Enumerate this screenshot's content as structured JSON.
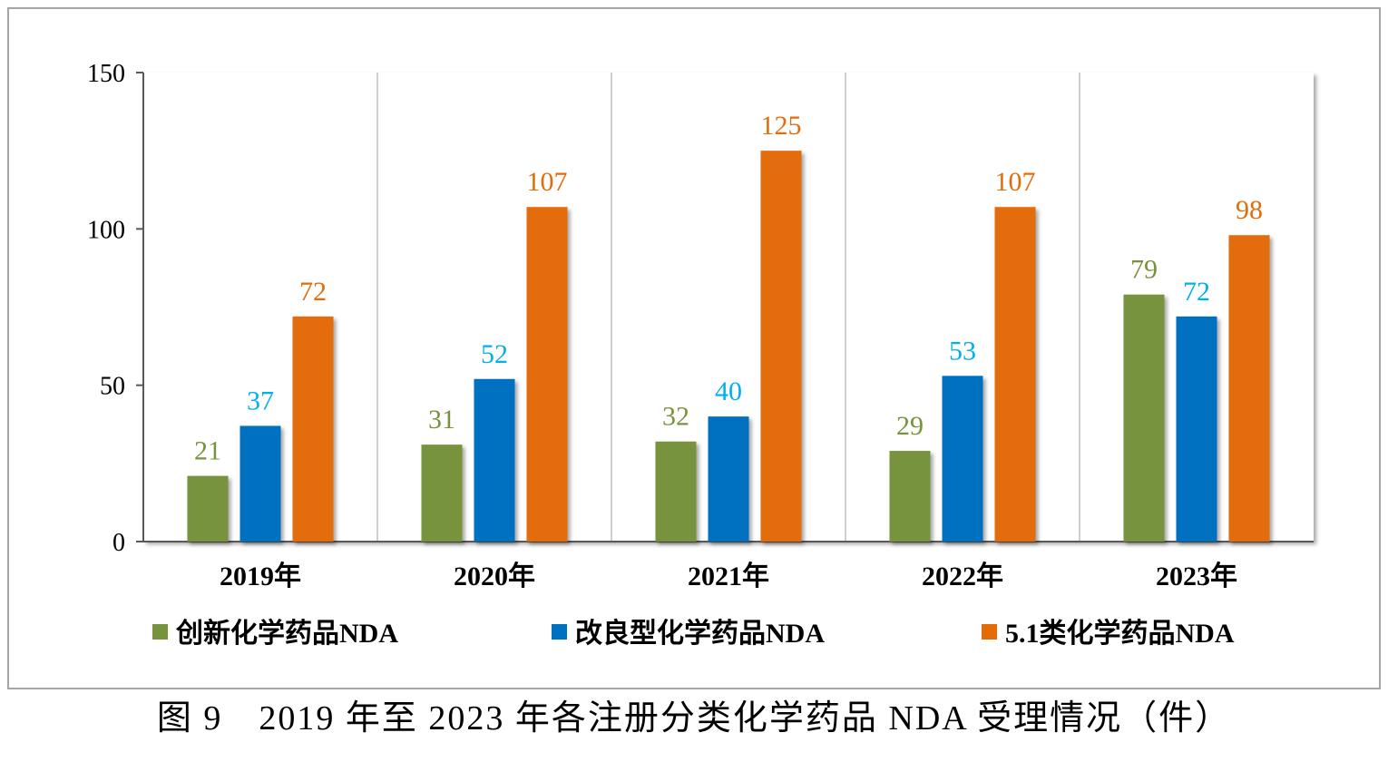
{
  "caption": "图 9　2019 年至 2023 年各注册分类化学药品 NDA 受理情况（件）",
  "chart_data": {
    "type": "bar",
    "title": "",
    "xlabel": "",
    "ylabel": "",
    "categories": [
      "2019年",
      "2020年",
      "2021年",
      "2022年",
      "2023年"
    ],
    "ylim": [
      0,
      150
    ],
    "yticks": [
      0,
      50,
      100,
      150
    ],
    "grid": "vertical separators between categories",
    "legend_position": "bottom",
    "series": [
      {
        "name": "创新化学药品NDA",
        "color": "#77933c",
        "label_color": "#77933c",
        "values": [
          21,
          31,
          32,
          29,
          79
        ]
      },
      {
        "name": "改良型化学药品NDA",
        "color": "#0070c0",
        "label_color": "#00b0f0",
        "values": [
          37,
          52,
          40,
          53,
          72
        ]
      },
      {
        "name": "5.1类化学药品NDA",
        "color": "#e36c09",
        "label_color": "#e36c09",
        "values": [
          72,
          107,
          125,
          107,
          98
        ]
      }
    ]
  }
}
